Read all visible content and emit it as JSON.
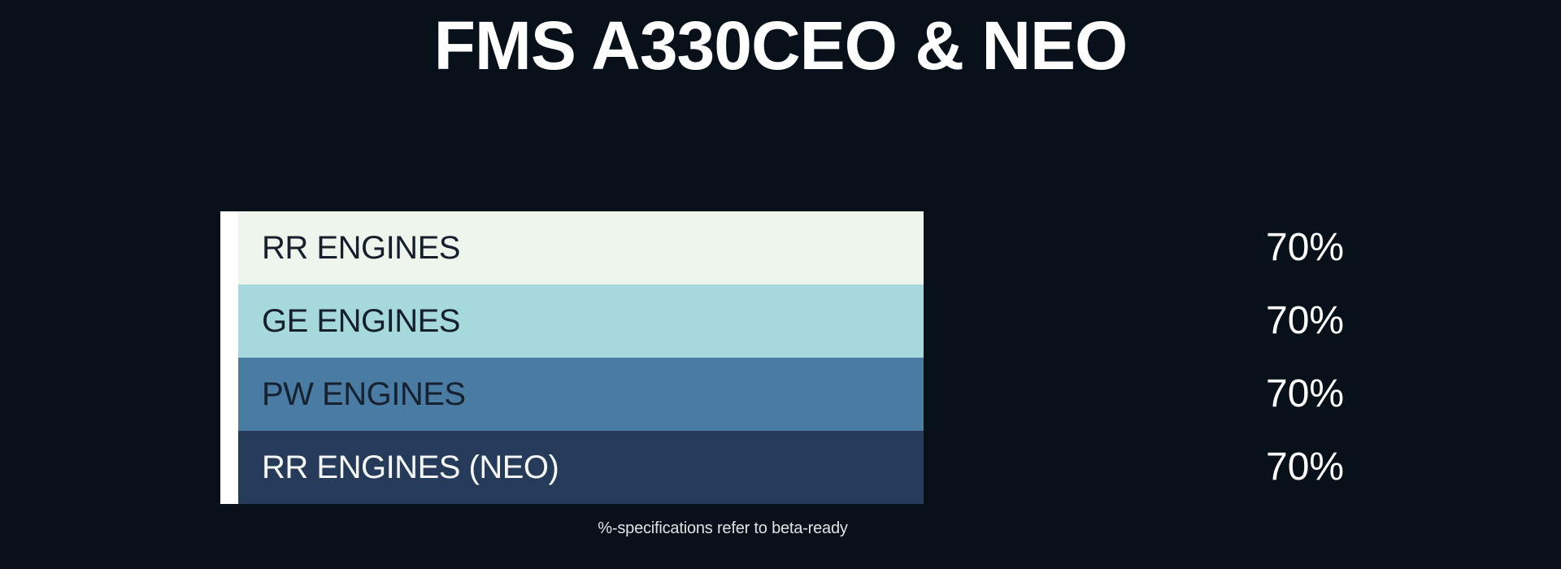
{
  "title": "FMS A330CEO & NEO",
  "footnote": "%-specifications refer to beta-ready",
  "colors": {
    "background": "#081019",
    "title_text": "#ffffff",
    "axis_line": "#ffffff",
    "value_text": "#ffffff",
    "footnote_text": "#dfe3e3"
  },
  "chart_data": {
    "type": "bar",
    "orientation": "horizontal",
    "title": "FMS A330CEO & NEO",
    "categories": [
      "RR ENGINES",
      "GE ENGINES",
      "PW ENGINES",
      "RR ENGINES (NEO)"
    ],
    "values": [
      70,
      70,
      70,
      70
    ],
    "value_labels": [
      "70%",
      "70%",
      "70%",
      "70%"
    ],
    "unit": "%",
    "xlim": [
      0,
      100
    ],
    "grid": false,
    "legend": false,
    "bar_colors": [
      "#eef5ec",
      "#a6d9dc",
      "#4a7ba3",
      "#263a59"
    ],
    "label_colors": [
      "#15202c",
      "#15202c",
      "#16222f",
      "#f5f7f6"
    ],
    "annotation": "%-specifications refer to beta-ready"
  }
}
